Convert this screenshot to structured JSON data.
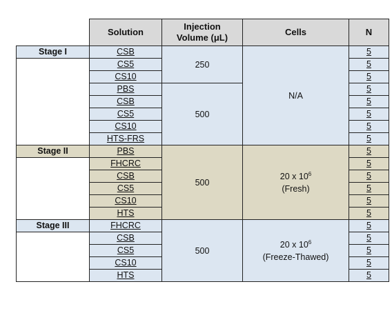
{
  "headers": {
    "solution": "Solution",
    "injection_line1": "Injection",
    "injection_line2": "Volume (μL)",
    "cells": "Cells",
    "n": "N"
  },
  "stages": [
    {
      "label": "Stage I",
      "solutions": [
        "CSB",
        "CS5",
        "CS10",
        "PBS",
        "CSB",
        "CS5",
        "CS10",
        "HTS-FRS"
      ],
      "n": [
        "5",
        "5",
        "5",
        "5",
        "5",
        "5",
        "5",
        "5"
      ],
      "volumes": [
        {
          "value": "250",
          "rows": 3
        },
        {
          "value": "500",
          "rows": 5
        }
      ],
      "cells": {
        "line1": "N/A",
        "exponent": "",
        "line2": ""
      }
    },
    {
      "label": "Stage II",
      "solutions": [
        "PBS",
        "FHCRC",
        "CSB",
        "CS5",
        "CS10",
        "HTS"
      ],
      "n": [
        "5",
        "5",
        "5",
        "5",
        "5",
        "5"
      ],
      "volumes": [
        {
          "value": "500",
          "rows": 6
        }
      ],
      "cells": {
        "line1": "20 x 10",
        "exponent": "6",
        "line2": "(Fresh)"
      }
    },
    {
      "label": "Stage III",
      "solutions": [
        "FHCRC",
        "CSB",
        "CS5",
        "CS10",
        "HTS"
      ],
      "n": [
        "5",
        "5",
        "5",
        "5",
        "5"
      ],
      "volumes": [
        {
          "value": "500",
          "rows": 5
        }
      ],
      "cells": {
        "line1": "20 x 10",
        "exponent": "6",
        "line2": "(Freeze-Thawed)"
      }
    }
  ],
  "colors": {
    "stage1_fill": "#dce6f1",
    "stage2_fill": "#ddd9c4",
    "stage3_fill": "#dce6f1",
    "header_fill": "#d9d9d9"
  }
}
